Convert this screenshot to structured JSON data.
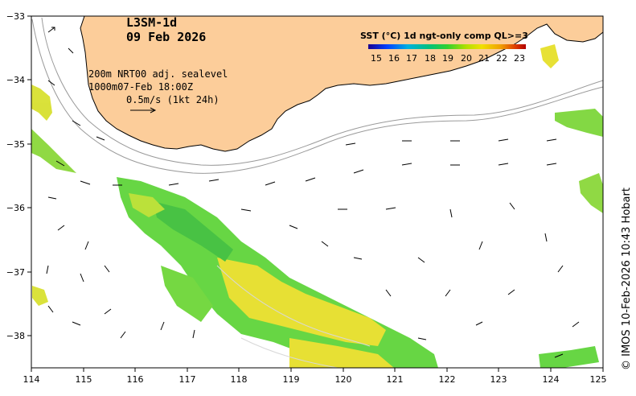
{
  "map": {
    "title_line1": "L3SM-1d",
    "title_line2": "09 Feb 2026",
    "info_line1": "200m  NRT00 adj. sealevel",
    "info_line2": "1000m07-Feb 18:00Z",
    "scale_label": "0.5m/s (1kt 24h)",
    "side_credit": "© IMOS 10-Feb-2026 10:43 Hobart",
    "colors": {
      "land": "#fccd9a",
      "sea": "#ffffff",
      "frame": "#000000"
    }
  },
  "legend": {
    "title": "SST (°C) 1d ngt-only comp QL>=3",
    "tick_labels": [
      "15",
      "16",
      "17",
      "18",
      "19",
      "20",
      "21",
      "22",
      "23"
    ],
    "colormap_stops": [
      "#1a0090",
      "#0040ff",
      "#00b0e0",
      "#00c080",
      "#30d030",
      "#b0e000",
      "#f0e000",
      "#f0a000",
      "#e04000",
      "#b00000"
    ]
  },
  "axes": {
    "x_ticks": [
      "114",
      "115",
      "116",
      "117",
      "118",
      "119",
      "120",
      "121",
      "122",
      "123",
      "124",
      "125"
    ],
    "y_ticks": [
      "−33",
      "−34",
      "−35",
      "−36",
      "−37",
      "−38"
    ],
    "x_range": [
      114,
      125
    ],
    "y_range": [
      -38.5,
      -33
    ]
  }
}
